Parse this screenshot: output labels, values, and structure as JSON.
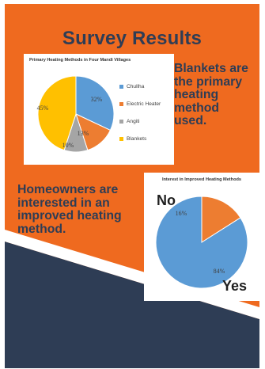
{
  "title": "Survey Results",
  "callouts": {
    "blankets": "Blankets are the primary heating method used.",
    "interest": "Homeowners are interested in an improved heating method."
  },
  "colors": {
    "background": "#ef6a1f",
    "dark_band": "#2e3d55",
    "title_text": "#2e3d55",
    "chullha": "#5b9bd5",
    "electric_heater": "#ed7d31",
    "angiti": "#a5a5a5",
    "blankets": "#ffc000",
    "yes": "#5b9bd5",
    "no": "#ed7d31"
  },
  "chart_data": [
    {
      "type": "pie",
      "title": "Primary Heating Methods in Four Mandi Villages",
      "categories": [
        "Chullha",
        "Electric Heater",
        "Angiti",
        "Blankets"
      ],
      "values": [
        32,
        13,
        10,
        45
      ],
      "value_labels": [
        "32%",
        "13%",
        "10%",
        "45%"
      ],
      "colors": [
        "#5b9bd5",
        "#ed7d31",
        "#a5a5a5",
        "#ffc000"
      ],
      "legend": "right"
    },
    {
      "type": "pie",
      "title": "Interest in Improved Heating Methods",
      "categories": [
        "No",
        "Yes"
      ],
      "values": [
        16,
        84
      ],
      "value_labels": [
        "16%",
        "84%"
      ],
      "colors": [
        "#ed7d31",
        "#5b9bd5"
      ],
      "legend": "none"
    }
  ]
}
